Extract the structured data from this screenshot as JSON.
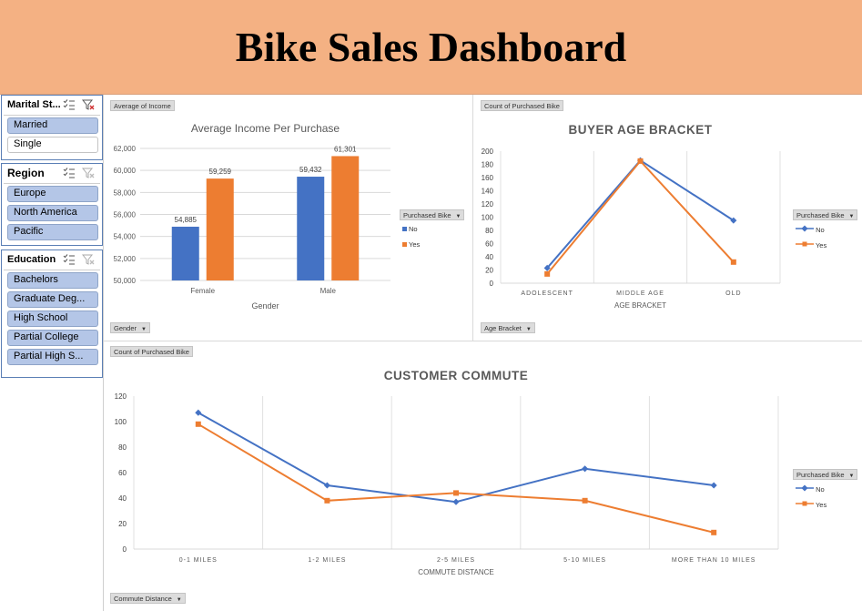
{
  "title": "Bike Sales Dashboard",
  "slicers": {
    "marital": {
      "title": "Marital St...",
      "items": [
        {
          "label": "Married",
          "selected": true
        },
        {
          "label": "Single",
          "selected": false
        }
      ]
    },
    "region": {
      "title": "Region",
      "items": [
        {
          "label": "Europe",
          "selected": true
        },
        {
          "label": "North America",
          "selected": true
        },
        {
          "label": "Pacific",
          "selected": true
        }
      ]
    },
    "education": {
      "title": "Education",
      "items": [
        {
          "label": "Bachelors",
          "selected": true
        },
        {
          "label": "Graduate Deg...",
          "selected": true
        },
        {
          "label": "High School",
          "selected": true
        },
        {
          "label": "Partial College",
          "selected": true
        },
        {
          "label": "Partial High S...",
          "selected": true
        }
      ]
    }
  },
  "income_panel": {
    "value_field": "Average of Income",
    "axis_field": "Gender",
    "legend_field": "Purchased Bike"
  },
  "age_panel": {
    "value_field": "Count of Purchased Bike",
    "axis_field": "Age Bracket",
    "legend_field": "Purchased Bike"
  },
  "commute_panel": {
    "value_field": "Count of Purchased Bike",
    "axis_field": "Commute Distance",
    "legend_field": "Purchased Bike"
  },
  "colors": {
    "no": "#4472c4",
    "yes": "#ed7d31",
    "header": "#f4b183"
  },
  "chart_data": [
    {
      "type": "bar",
      "title": "Average Income Per Purchase",
      "xlabel": "Gender",
      "ylabel": "",
      "categories": [
        "Female",
        "Male"
      ],
      "series": [
        {
          "name": "No",
          "values": [
            54885,
            59432
          ]
        },
        {
          "name": "Yes",
          "values": [
            59259,
            61301
          ]
        }
      ],
      "value_labels": [
        [
          "54,885",
          "59,432"
        ],
        [
          "59,259",
          "61,301"
        ]
      ],
      "ylim": [
        50000,
        62000
      ],
      "yticks": [
        "50,000",
        "52,000",
        "54,000",
        "56,000",
        "58,000",
        "60,000",
        "62,000"
      ],
      "grid": true,
      "legend": "right"
    },
    {
      "type": "line",
      "title": "BUYER AGE BRACKET",
      "xlabel": "AGE BRACKET",
      "ylabel": "",
      "categories": [
        "ADOLESCENT",
        "MIDDLE AGE",
        "OLD"
      ],
      "series": [
        {
          "name": "No",
          "values": [
            23,
            186,
            95
          ]
        },
        {
          "name": "Yes",
          "values": [
            14,
            185,
            32
          ]
        }
      ],
      "ylim": [
        0,
        200
      ],
      "yticks": [
        "0",
        "20",
        "40",
        "60",
        "80",
        "100",
        "120",
        "140",
        "160",
        "180",
        "200"
      ],
      "grid": true,
      "legend": "right"
    },
    {
      "type": "line",
      "title": "CUSTOMER COMMUTE",
      "xlabel": "COMMUTE DISTANCE",
      "ylabel": "",
      "categories": [
        "0-1 MILES",
        "1-2 MILES",
        "2-5 MILES",
        "5-10 MILES",
        "MORE THAN 10 MILES"
      ],
      "series": [
        {
          "name": "No",
          "values": [
            107,
            50,
            37,
            63,
            50
          ]
        },
        {
          "name": "Yes",
          "values": [
            98,
            38,
            44,
            38,
            13
          ]
        }
      ],
      "ylim": [
        0,
        120
      ],
      "yticks": [
        "0",
        "20",
        "40",
        "60",
        "80",
        "100",
        "120"
      ],
      "grid": true,
      "legend": "right"
    }
  ]
}
